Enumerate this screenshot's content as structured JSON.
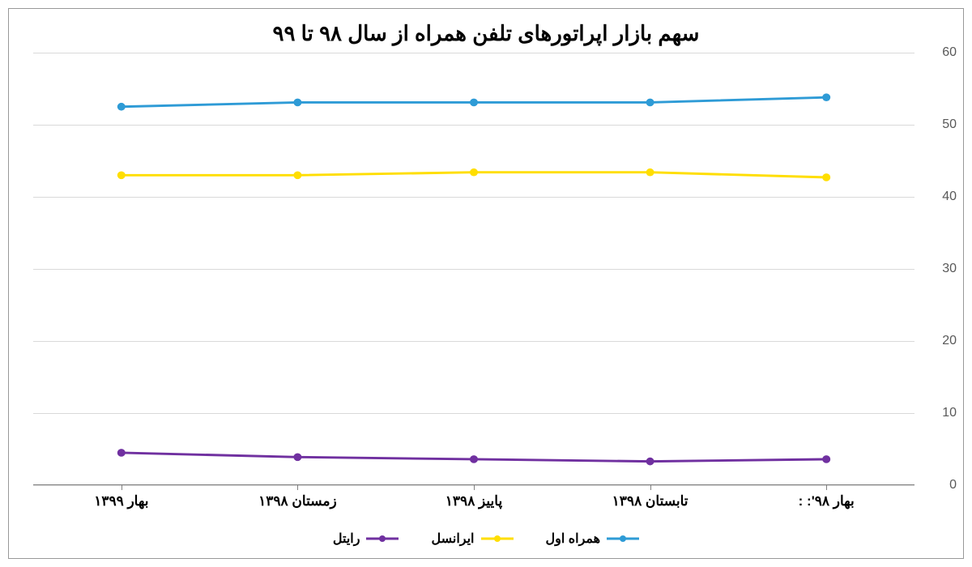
{
  "chart": {
    "type": "line",
    "title": "سهم بازار اپراتورهای تلفن همراه از سال ۹۸ تا ۹۹",
    "title_fontsize": 26,
    "background_color": "#ffffff",
    "grid_color": "#d9d9d9",
    "axis_color": "#808080",
    "tick_label_color": "#595959",
    "x_labels": [
      "بهار ۹۸': :",
      "تابستان ۱۳۹۸",
      "پاییز ۱۳۹۸",
      "زمستان ۱۳۹۸",
      "بهار ۱۳۹۹"
    ],
    "x_label_fontsize": 17,
    "ylim": [
      0,
      60
    ],
    "ytick_step": 10,
    "y_ticks": [
      0,
      10,
      20,
      30,
      40,
      50,
      60
    ],
    "y_tick_fontsize": 16,
    "line_width": 3,
    "marker_radius": 5,
    "series": [
      {
        "name": "همراه اول",
        "color": "#2e9bd6",
        "values": [
          52.5,
          53.1,
          53.1,
          53.1,
          53.8
        ]
      },
      {
        "name": "ایرانسل",
        "color": "#ffde00",
        "values": [
          43.0,
          43.0,
          43.4,
          43.4,
          42.7
        ]
      },
      {
        "name": "رایتل",
        "color": "#7030a0",
        "values": [
          4.5,
          3.9,
          3.6,
          3.3,
          3.6
        ]
      }
    ],
    "legend_fontsize": 16
  }
}
